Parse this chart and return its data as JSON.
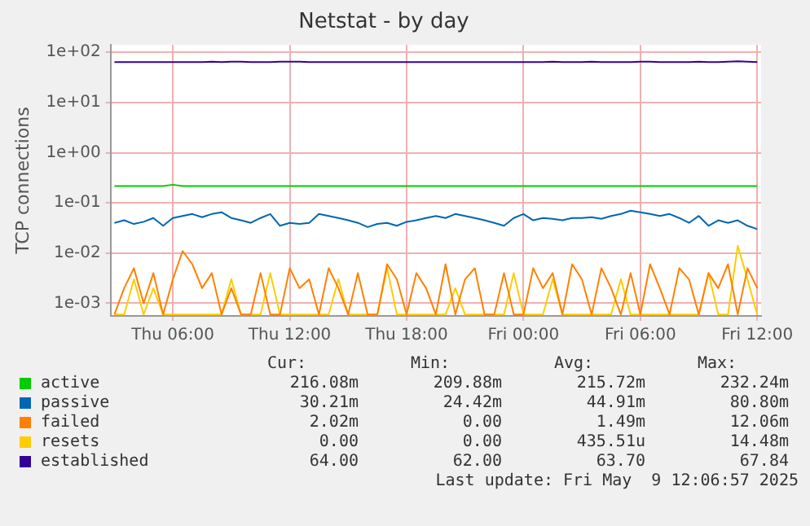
{
  "chart_data": {
    "type": "line",
    "title": "Netstat - by day",
    "ylabel": "TCP connections",
    "log": "y",
    "grid": true,
    "legend": "bottom",
    "marker": "none",
    "line_style": "solid",
    "xlim": [
      "2025-05-08T02:48",
      "2025-05-09T12:12"
    ],
    "xticks": [
      {
        "value": "2025-05-08T06:00",
        "label": "Thu 06:00"
      },
      {
        "value": "2025-05-08T12:00",
        "label": "Thu 12:00"
      },
      {
        "value": "2025-05-08T18:00",
        "label": "Thu 18:00"
      },
      {
        "value": "2025-05-09T00:00",
        "label": "Fri 00:00"
      },
      {
        "value": "2025-05-09T06:00",
        "label": "Fri 06:00"
      },
      {
        "value": "2025-05-09T12:00",
        "label": "Fri 12:00"
      }
    ],
    "ylim": [
      0.00056,
      140
    ],
    "yticks": [
      {
        "value": 0.001,
        "label": "1e-03"
      },
      {
        "value": 0.01,
        "label": "1e-02"
      },
      {
        "value": 0.1,
        "label": "1e-01"
      },
      {
        "value": 1,
        "label": "1e+00"
      },
      {
        "value": 10,
        "label": "1e+01"
      },
      {
        "value": 100,
        "label": "1e+02"
      }
    ],
    "x": [
      "2025-05-08T03:00",
      "2025-05-08T03:30",
      "2025-05-08T04:00",
      "2025-05-08T04:30",
      "2025-05-08T05:00",
      "2025-05-08T05:30",
      "2025-05-08T06:00",
      "2025-05-08T06:30",
      "2025-05-08T07:00",
      "2025-05-08T07:30",
      "2025-05-08T08:00",
      "2025-05-08T08:30",
      "2025-05-08T09:00",
      "2025-05-08T09:30",
      "2025-05-08T10:00",
      "2025-05-08T10:30",
      "2025-05-08T11:00",
      "2025-05-08T11:30",
      "2025-05-08T12:00",
      "2025-05-08T12:30",
      "2025-05-08T13:00",
      "2025-05-08T13:30",
      "2025-05-08T14:00",
      "2025-05-08T14:30",
      "2025-05-08T15:00",
      "2025-05-08T15:30",
      "2025-05-08T16:00",
      "2025-05-08T16:30",
      "2025-05-08T17:00",
      "2025-05-08T17:30",
      "2025-05-08T18:00",
      "2025-05-08T18:30",
      "2025-05-08T19:00",
      "2025-05-08T19:30",
      "2025-05-08T20:00",
      "2025-05-08T20:30",
      "2025-05-08T21:00",
      "2025-05-08T21:30",
      "2025-05-08T22:00",
      "2025-05-08T22:30",
      "2025-05-08T23:00",
      "2025-05-08T23:30",
      "2025-05-09T00:00",
      "2025-05-09T00:30",
      "2025-05-09T01:00",
      "2025-05-09T01:30",
      "2025-05-09T02:00",
      "2025-05-09T02:30",
      "2025-05-09T03:00",
      "2025-05-09T03:30",
      "2025-05-09T04:00",
      "2025-05-09T04:30",
      "2025-05-09T05:00",
      "2025-05-09T05:30",
      "2025-05-09T06:00",
      "2025-05-09T06:30",
      "2025-05-09T07:00",
      "2025-05-09T07:30",
      "2025-05-09T08:00",
      "2025-05-09T08:30",
      "2025-05-09T09:00",
      "2025-05-09T09:30",
      "2025-05-09T10:00",
      "2025-05-09T10:30",
      "2025-05-09T11:00",
      "2025-05-09T11:30",
      "2025-05-09T12:00"
    ],
    "series": [
      {
        "name": "active",
        "color": "#00cc00",
        "values": [
          0.216,
          0.216,
          0.216,
          0.216,
          0.216,
          0.216,
          0.23,
          0.216,
          0.216,
          0.216,
          0.216,
          0.216,
          0.216,
          0.216,
          0.216,
          0.216,
          0.216,
          0.216,
          0.216,
          0.216,
          0.216,
          0.216,
          0.216,
          0.216,
          0.216,
          0.216,
          0.216,
          0.216,
          0.216,
          0.216,
          0.216,
          0.216,
          0.216,
          0.216,
          0.216,
          0.216,
          0.216,
          0.216,
          0.216,
          0.216,
          0.216,
          0.216,
          0.216,
          0.216,
          0.216,
          0.216,
          0.216,
          0.216,
          0.216,
          0.216,
          0.216,
          0.216,
          0.216,
          0.216,
          0.216,
          0.216,
          0.216,
          0.216,
          0.216,
          0.216,
          0.216,
          0.216,
          0.216,
          0.216,
          0.216,
          0.216,
          0.216
        ]
      },
      {
        "name": "passive",
        "color": "#0066b3",
        "values": [
          0.04,
          0.045,
          0.038,
          0.042,
          0.05,
          0.035,
          0.05,
          0.055,
          0.06,
          0.052,
          0.06,
          0.065,
          0.05,
          0.045,
          0.04,
          0.05,
          0.06,
          0.035,
          0.04,
          0.038,
          0.04,
          0.06,
          0.055,
          0.05,
          0.045,
          0.04,
          0.033,
          0.038,
          0.04,
          0.035,
          0.042,
          0.045,
          0.05,
          0.055,
          0.05,
          0.06,
          0.055,
          0.05,
          0.045,
          0.04,
          0.035,
          0.05,
          0.06,
          0.045,
          0.05,
          0.048,
          0.045,
          0.05,
          0.05,
          0.052,
          0.048,
          0.055,
          0.06,
          0.07,
          0.065,
          0.06,
          0.055,
          0.06,
          0.05,
          0.04,
          0.055,
          0.035,
          0.045,
          0.04,
          0.045,
          0.035,
          0.03
        ]
      },
      {
        "name": "failed",
        "color": "#ff8000",
        "values": [
          0.0006,
          0.002,
          0.005,
          0.001,
          0.004,
          0.0006,
          0.003,
          0.011,
          0.006,
          0.002,
          0.004,
          0.0006,
          0.002,
          0.0006,
          0.0006,
          0.004,
          0.0006,
          0.0006,
          0.005,
          0.002,
          0.003,
          0.0006,
          0.005,
          0.002,
          0.0006,
          0.004,
          0.0006,
          0.0006,
          0.006,
          0.003,
          0.0006,
          0.004,
          0.002,
          0.0006,
          0.006,
          0.0006,
          0.003,
          0.005,
          0.0006,
          0.0006,
          0.004,
          0.0006,
          0.0006,
          0.005,
          0.002,
          0.004,
          0.0006,
          0.006,
          0.003,
          0.0006,
          0.005,
          0.002,
          0.0006,
          0.004,
          0.0006,
          0.006,
          0.002,
          0.0006,
          0.005,
          0.003,
          0.0006,
          0.004,
          0.002,
          0.006,
          0.0006,
          0.005,
          0.002
        ]
      },
      {
        "name": "resets",
        "color": "#ffcc00",
        "values": [
          0.0006,
          0.0006,
          0.003,
          0.0006,
          0.002,
          0.0006,
          0.0006,
          0.0006,
          0.0006,
          0.0006,
          0.0006,
          0.0006,
          0.003,
          0.0006,
          0.0006,
          0.0006,
          0.004,
          0.0006,
          0.0006,
          0.0006,
          0.0006,
          0.0006,
          0.0006,
          0.003,
          0.0006,
          0.0006,
          0.0006,
          0.0006,
          0.005,
          0.0006,
          0.0006,
          0.0006,
          0.0006,
          0.0006,
          0.0006,
          0.002,
          0.0006,
          0.0006,
          0.0006,
          0.0006,
          0.0006,
          0.004,
          0.0006,
          0.0006,
          0.0006,
          0.003,
          0.0006,
          0.0006,
          0.0006,
          0.0006,
          0.0006,
          0.0006,
          0.003,
          0.0006,
          0.0006,
          0.0006,
          0.0006,
          0.0006,
          0.0006,
          0.0006,
          0.0006,
          0.004,
          0.0006,
          0.0006,
          0.014,
          0.003,
          0.0006
        ]
      },
      {
        "name": "established",
        "color": "#330099",
        "values": [
          64,
          64,
          64,
          64,
          64,
          64,
          64,
          64,
          64,
          64,
          65,
          64,
          65,
          65,
          64,
          64,
          64,
          65,
          65,
          65,
          64,
          64,
          64,
          64,
          64,
          64,
          64,
          64,
          64,
          64,
          64,
          64,
          64,
          64,
          64,
          64,
          64,
          64,
          64,
          64,
          64,
          64,
          64,
          64,
          64,
          65,
          64,
          64,
          64,
          65,
          64,
          64,
          64,
          64,
          65,
          65,
          64,
          64,
          64,
          64,
          65,
          64,
          64,
          65,
          66,
          65,
          64
        ]
      }
    ],
    "annotations": [
      "Cur: Min: Avg: Max:",
      "216.08m 209.88m 215.72m 232.24m",
      "30.21m 24.42m 44.91m 80.80m",
      "2.02m 0.00 1.49m 12.06m",
      "0.00 0.00 435.51u 14.48m",
      "64.00 62.00 63.70 67.84",
      "Last update: Fri May  9 12:06:57 2025"
    ]
  }
}
